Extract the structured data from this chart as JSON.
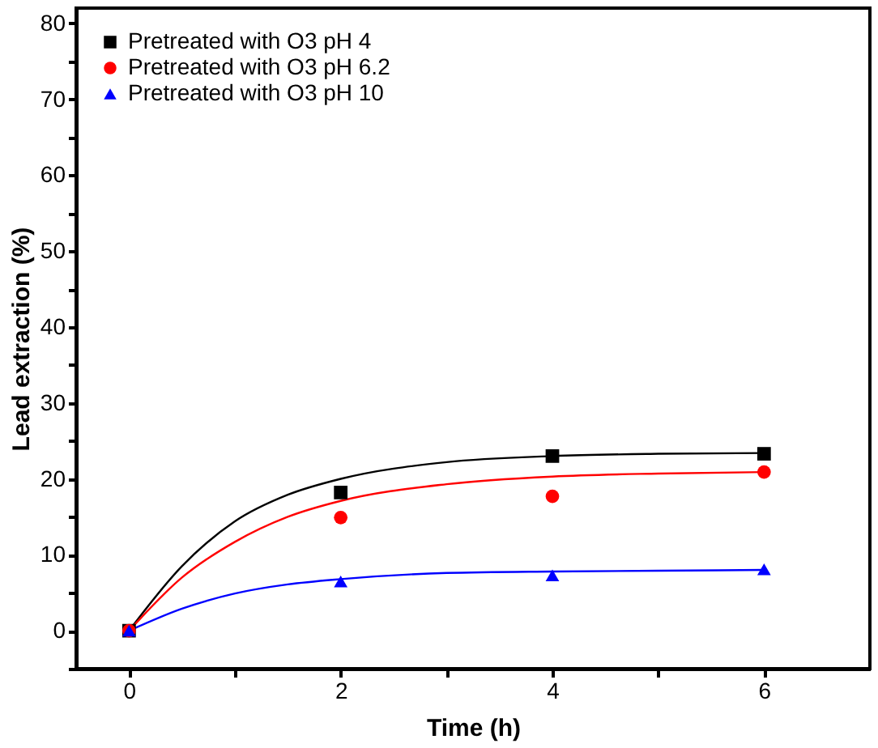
{
  "chart_data": {
    "type": "scatter",
    "xlabel": "Time (h)",
    "ylabel": "Lead extraction (%)",
    "xlim": [
      -0.5,
      7
    ],
    "ylim": [
      -5,
      82
    ],
    "xticks": [
      0,
      {
        "value": 1,
        "label": null
      },
      2,
      {
        "value": 3,
        "label": null
      },
      4,
      {
        "value": 5,
        "label": null
      },
      6
    ],
    "yticks": [
      {
        "value": -5,
        "label": null
      },
      0,
      {
        "value": 5,
        "label": null
      },
      10,
      {
        "value": 15,
        "label": null
      },
      20,
      {
        "value": 25,
        "label": null
      },
      30,
      {
        "value": 35,
        "label": null
      },
      40,
      {
        "value": 45,
        "label": null
      },
      50,
      {
        "value": 55,
        "label": null
      },
      60,
      {
        "value": 65,
        "label": null
      },
      70,
      {
        "value": 75,
        "label": null
      },
      80
    ],
    "grid": false,
    "legend": "top left",
    "series": [
      {
        "name": "Pretreated with O3 pH 4",
        "marker": "square",
        "color": "#000000",
        "x": [
          0,
          2,
          4,
          6
        ],
        "values": [
          0,
          18.2,
          23.0,
          23.3
        ]
      },
      {
        "name": "Pretreated with O3 pH 6.2",
        "marker": "circle",
        "color": "#ff0000",
        "x": [
          0,
          2,
          4,
          6
        ],
        "values": [
          0,
          14.9,
          17.7,
          20.9
        ]
      },
      {
        "name": "Pretreated with O3 pH 10",
        "marker": "triangle",
        "color": "#0000ff",
        "x": [
          0,
          2,
          4,
          6
        ],
        "values": [
          0,
          6.5,
          7.3,
          8.1
        ]
      },
      {
        "type": "line",
        "marker": "none",
        "line_style": "solid",
        "color": "#000000",
        "x": [
          0,
          0.5,
          1,
          1.5,
          2,
          3,
          4,
          5,
          6
        ],
        "values": [
          0,
          8.5,
          14.4,
          17.9,
          20.0,
          22.2,
          23.0,
          23.3,
          23.4
        ]
      },
      {
        "type": "line",
        "marker": "none",
        "line_style": "solid",
        "color": "#ff0000",
        "x": [
          0,
          0.5,
          1,
          1.5,
          2,
          3,
          4,
          5,
          6
        ],
        "values": [
          0,
          7.0,
          11.7,
          15.0,
          17.1,
          19.3,
          20.3,
          20.7,
          20.9
        ]
      },
      {
        "type": "line",
        "marker": "none",
        "line_style": "solid",
        "color": "#0000ff",
        "x": [
          0,
          0.5,
          1,
          1.5,
          2,
          3,
          4,
          5,
          6
        ],
        "values": [
          0,
          2.9,
          4.9,
          6.1,
          6.8,
          7.6,
          7.8,
          7.9,
          8.0
        ]
      }
    ]
  }
}
